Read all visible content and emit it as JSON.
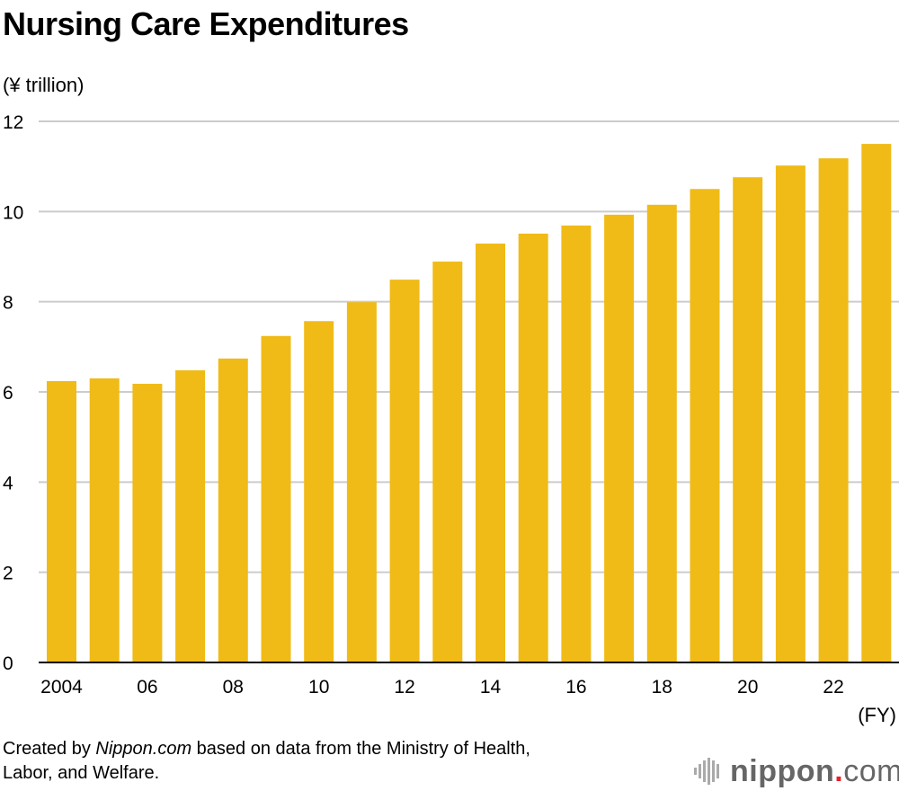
{
  "chart_data": {
    "type": "bar",
    "title": "Nursing Care Expenditures",
    "ylabel": "(¥ trillion)",
    "xlabel": "(FY)",
    "categories": [
      "2004",
      "2005",
      "2006",
      "2007",
      "2008",
      "2009",
      "2010",
      "2011",
      "2012",
      "2013",
      "2014",
      "2015",
      "2016",
      "2017",
      "2018",
      "2019",
      "2020",
      "2021",
      "2022",
      "2023"
    ],
    "x_tick_labels": {
      "2004": "2004",
      "2006": "06",
      "2008": "08",
      "2010": "10",
      "2012": "12",
      "2014": "14",
      "2016": "16",
      "2018": "18",
      "2020": "20",
      "2022": "22"
    },
    "values": [
      6.24,
      6.3,
      6.18,
      6.48,
      6.74,
      7.24,
      7.57,
      7.99,
      8.49,
      8.89,
      9.29,
      9.51,
      9.69,
      9.93,
      10.15,
      10.5,
      10.76,
      11.02,
      11.18,
      11.5
    ],
    "ylim": [
      0,
      12
    ],
    "y_ticks": [
      0,
      2,
      4,
      6,
      8,
      10,
      12
    ],
    "grid": true,
    "bar_color": "#f0bb17",
    "grid_color": "#cccccc"
  },
  "source": {
    "prefix": "Created by ",
    "brand": "Nippon.com",
    "suffix": " based on data from the Ministry of Health,",
    "line2": "Labor, and Welfare."
  },
  "logo": {
    "text": "nippon",
    "dot": ".",
    "com": "com",
    "accent": "#e8202a"
  }
}
